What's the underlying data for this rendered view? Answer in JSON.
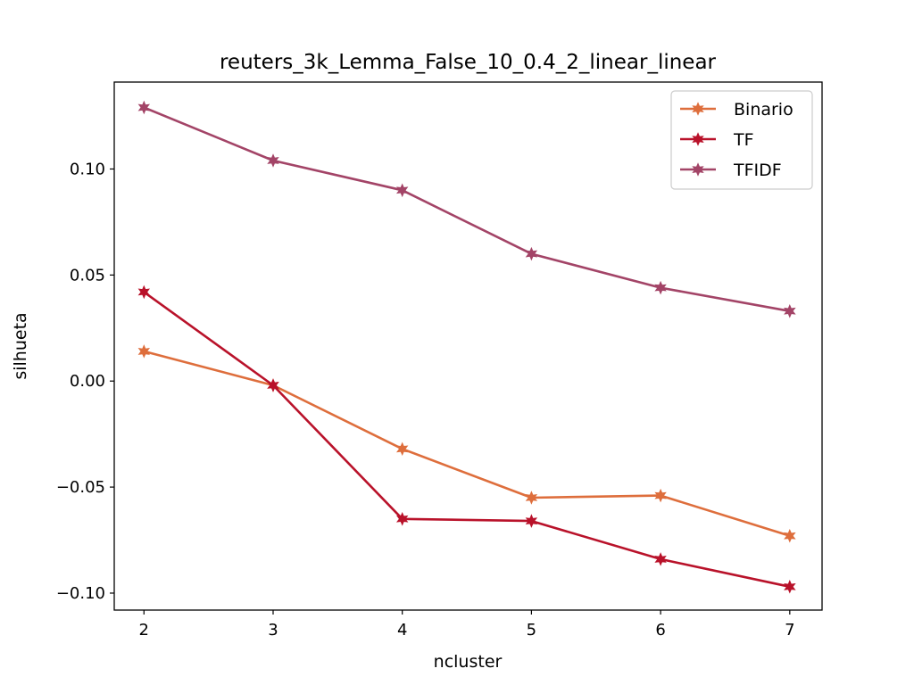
{
  "chart_data": {
    "type": "line",
    "title": "reuters_3k_Lemma_False_10_0.4_2_linear_linear",
    "xlabel": "ncluster",
    "ylabel": "silhueta",
    "x": [
      2,
      3,
      4,
      5,
      6,
      7
    ],
    "xlim": [
      1.77,
      7.25
    ],
    "ylim": [
      -0.108,
      0.141
    ],
    "xticks": [
      2,
      3,
      4,
      5,
      6,
      7
    ],
    "xtick_labels": [
      "2",
      "3",
      "4",
      "5",
      "6",
      "7"
    ],
    "yticks": [
      -0.1,
      -0.05,
      0.0,
      0.05,
      0.1
    ],
    "ytick_labels": [
      "−0.10",
      "−0.05",
      "0.00",
      "0.05",
      "0.10"
    ],
    "grid": false,
    "legend_position": "top-right",
    "marker": "X-star",
    "series": [
      {
        "name": "Binario",
        "color": "#de6e3c",
        "values": [
          0.014,
          -0.002,
          -0.032,
          -0.055,
          -0.054,
          -0.073
        ]
      },
      {
        "name": "TF",
        "color": "#b9122a",
        "values": [
          0.042,
          -0.002,
          -0.065,
          -0.066,
          -0.084,
          -0.097
        ]
      },
      {
        "name": "TFIDF",
        "color": "#a34467",
        "values": [
          0.129,
          0.104,
          0.09,
          0.06,
          0.044,
          0.033
        ]
      }
    ]
  }
}
